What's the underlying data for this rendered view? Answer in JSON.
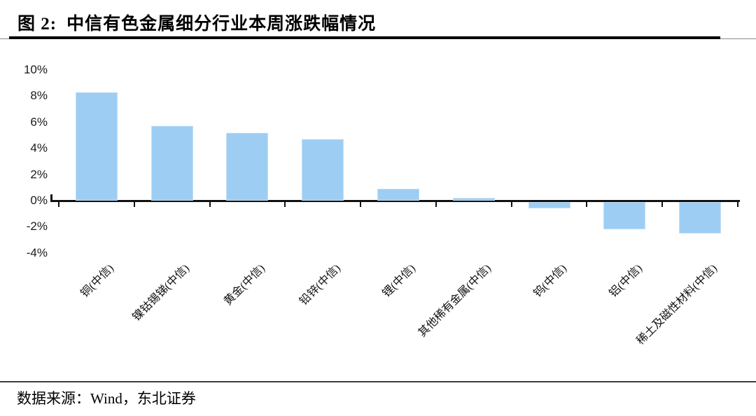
{
  "figure": {
    "label": "图 2:",
    "title": "中信有色金属细分行业本周涨跌幅情况"
  },
  "footer": {
    "source_label": "数据来源：Wind，东北证券"
  },
  "chart_data": {
    "type": "bar",
    "title": "中信有色金属细分行业本周涨跌幅情况",
    "categories": [
      "铜(中信)",
      "镍钴锡锑(中信)",
      "黄金(中信)",
      "铅锌(中信)",
      "锂(中信)",
      "其他稀有金属(中信)",
      "钨(中信)",
      "铝(中信)",
      "稀土及磁性材料(中信)"
    ],
    "values": [
      8.3,
      5.7,
      5.2,
      4.7,
      0.9,
      0.2,
      -0.5,
      -2.1,
      -2.4
    ],
    "unit": "%",
    "xlabel": "",
    "ylabel": "",
    "ylim": [
      -4,
      10
    ],
    "yticks": [
      10,
      8,
      6,
      4,
      2,
      0,
      -2,
      -4
    ],
    "ytick_labels": [
      "10%",
      "8%",
      "6%",
      "4%",
      "2%",
      "0%",
      "-2%",
      "-4%"
    ],
    "grid": false,
    "legend": false,
    "bar_color": "#9DCDF2",
    "axis_color": "#111111",
    "category_label_rotation_deg": -45
  }
}
